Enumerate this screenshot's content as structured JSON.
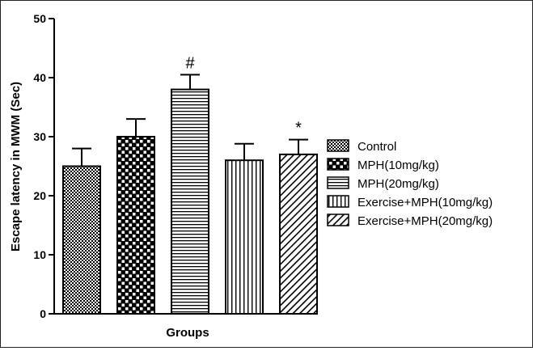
{
  "chart_data": {
    "type": "bar",
    "xlabel": "Groups",
    "ylabel": "Escape latency in MWM (Sec)",
    "ylim": [
      0,
      50
    ],
    "yticks": [
      0,
      10,
      20,
      30,
      40,
      50
    ],
    "legend_position": "right",
    "grid": false,
    "series": [
      {
        "name": "Control",
        "value": 25,
        "error": 3,
        "pattern": "checker",
        "annotation": ""
      },
      {
        "name": "MPH(10mg/kg)",
        "value": 30,
        "error": 3,
        "pattern": "grid",
        "annotation": ""
      },
      {
        "name": "MPH(20mg/kg)",
        "value": 38,
        "error": 2.5,
        "pattern": "horizontal",
        "annotation": "#"
      },
      {
        "name": "Exercise+MPH(10mg/kg)",
        "value": 26,
        "error": 2.8,
        "pattern": "vertical",
        "annotation": ""
      },
      {
        "name": "Exercise+MPH(20mg/kg)",
        "value": 27,
        "error": 2.5,
        "pattern": "diagonal",
        "annotation": "*"
      }
    ]
  }
}
